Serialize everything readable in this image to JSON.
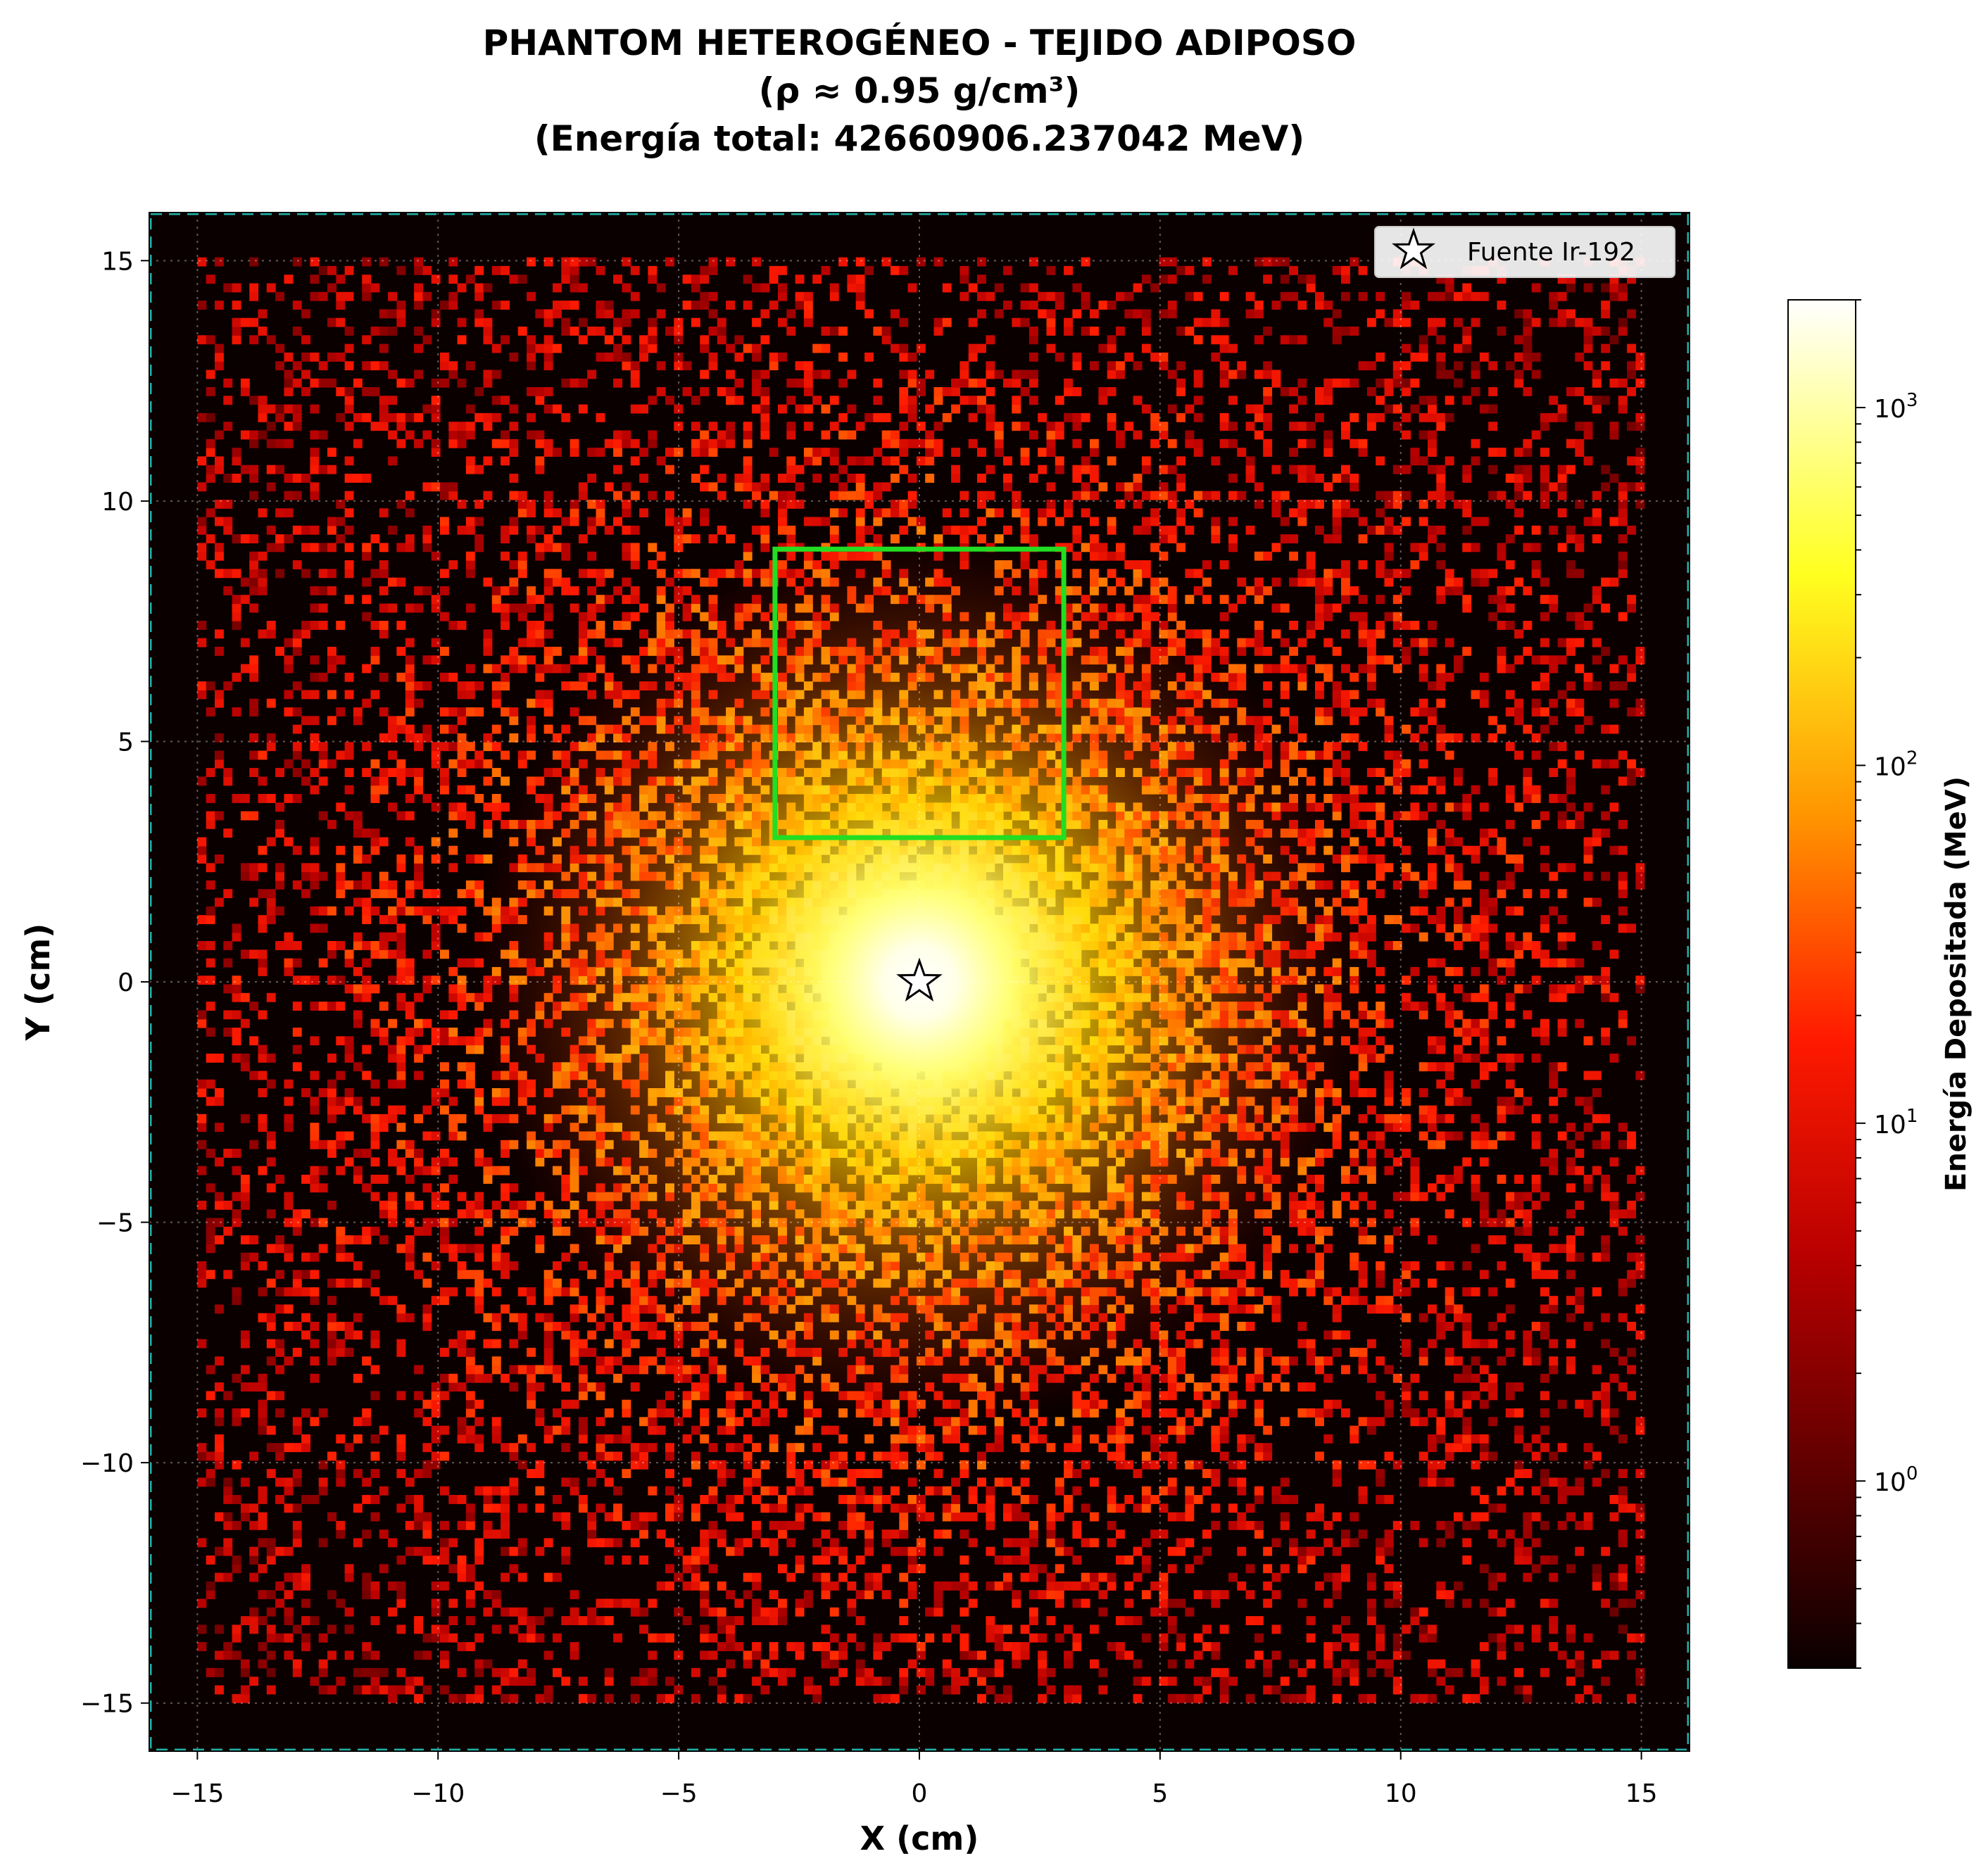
{
  "chart_data": {
    "type": "heatmap",
    "title_lines": [
      "PHANTOM HETEROGÉNEO - TEJIDO ADIPOSO",
      "(ρ ≈ 0.95 g/cm³)",
      "(Energía total: 42660906.237042 MeV)"
    ],
    "xlabel": "X (cm)",
    "ylabel": "Y (cm)",
    "xlim": [
      -16,
      16
    ],
    "ylim": [
      -16,
      16
    ],
    "xticks": [
      -15,
      -10,
      -5,
      0,
      5,
      10,
      15
    ],
    "xtick_labels": [
      "−15",
      "−10",
      "−5",
      "0",
      "5",
      "10",
      "15"
    ],
    "yticks": [
      15,
      10,
      5,
      0,
      -5,
      -10,
      -15
    ],
    "ytick_labels": [
      "15",
      "10",
      "5",
      "0",
      "−5",
      "−10",
      "−15"
    ],
    "grid": true,
    "colormap": "hot",
    "color_scale": "log",
    "colorbar": {
      "label": "Energía Depositada (MeV)",
      "range": [
        0.3,
        2000
      ],
      "ticks": [
        {
          "value": 1000,
          "base": "10",
          "exp": "3"
        },
        {
          "value": 100,
          "base": "10",
          "exp": "2"
        },
        {
          "value": 10,
          "base": "10",
          "exp": "1"
        },
        {
          "value": 1,
          "base": "10",
          "exp": "0"
        }
      ]
    },
    "deposition_extent": {
      "x": [
        -15,
        15
      ],
      "y": [
        -15,
        15
      ]
    },
    "source": {
      "label": "Fuente Ir-192",
      "x": 0,
      "y": 0,
      "marker": "star"
    },
    "legend": {
      "position": "top-right",
      "entries": [
        "Fuente Ir-192"
      ]
    },
    "region": {
      "x": [
        -3,
        3
      ],
      "y": [
        3,
        9
      ],
      "color": "#22dd22"
    },
    "phantom_boundary_color": "#20b2aa"
  }
}
